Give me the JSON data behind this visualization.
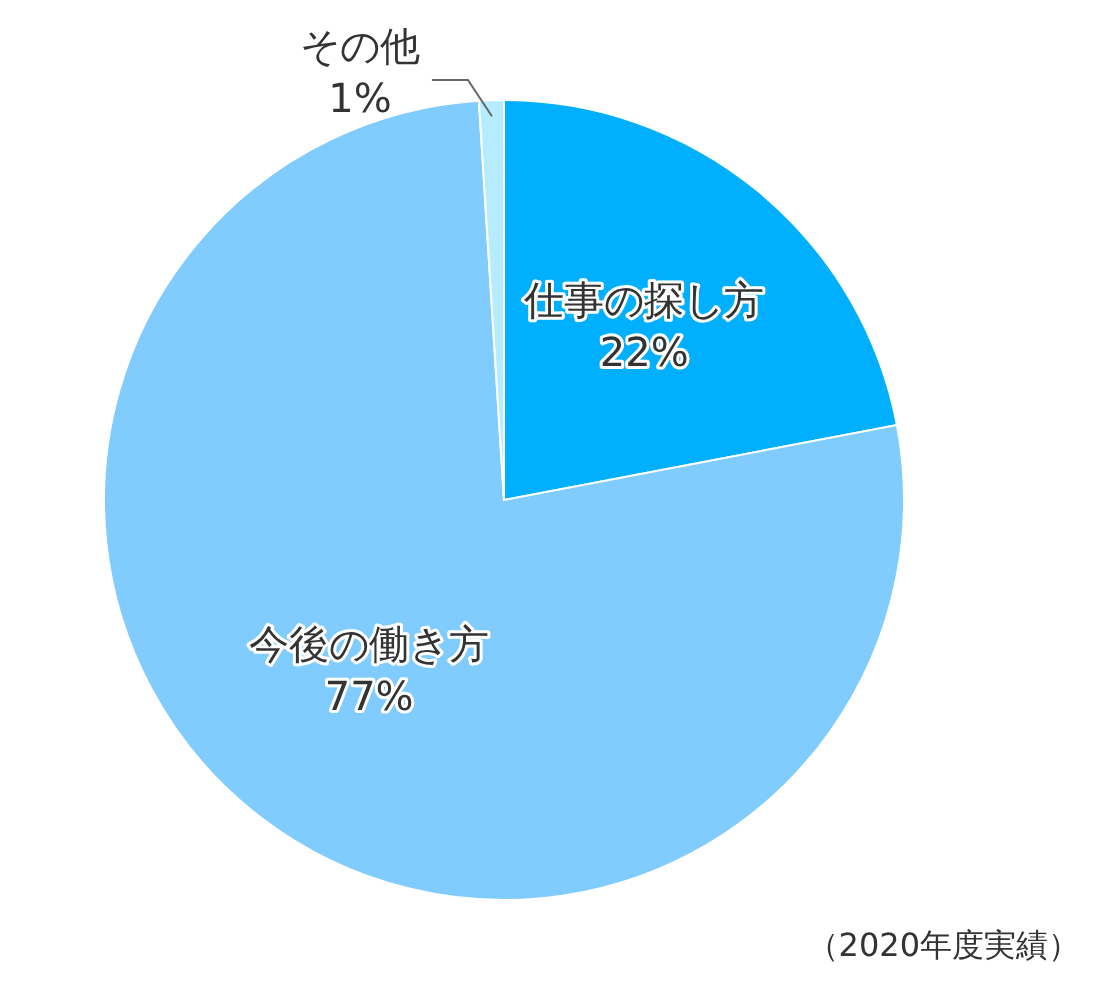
{
  "chart_data": {
    "type": "pie",
    "categories": [
      "仕事の探し方",
      "今後の働き方",
      "その他"
    ],
    "values": [
      22,
      77,
      1
    ],
    "value_labels": [
      "22%",
      "77%",
      "1%"
    ],
    "colors": [
      "#00b0ff",
      "#80ccff",
      "#b5ecff"
    ],
    "annotations": [
      "（2020年度実績）"
    ]
  }
}
